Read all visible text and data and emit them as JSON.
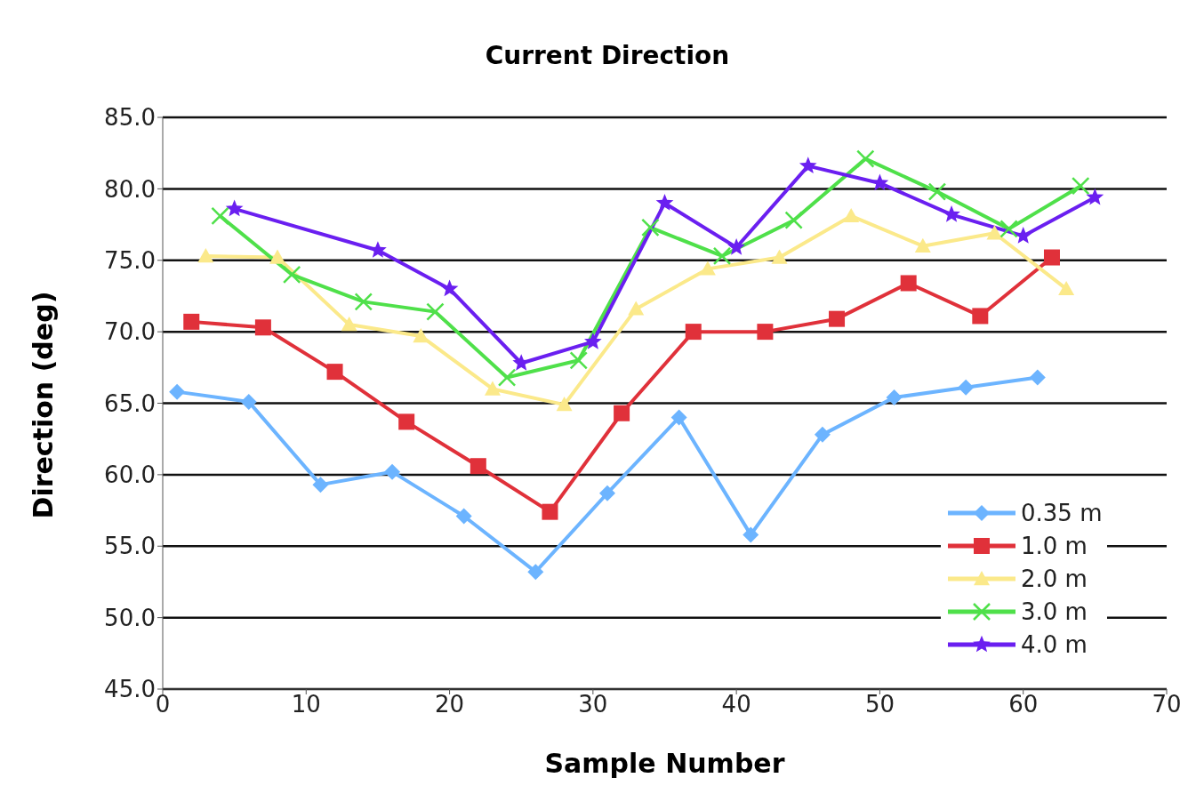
{
  "chart_data": {
    "type": "line",
    "title": "Current Direction",
    "xlabel": "Sample Number",
    "ylabel": "Direction (deg)",
    "xlim": [
      0,
      70
    ],
    "xticks": [
      0,
      10,
      20,
      30,
      40,
      50,
      60,
      70
    ],
    "ylim": [
      45,
      85
    ],
    "yticks": [
      {
        "value": 45,
        "label": "45.0"
      },
      {
        "value": 50,
        "label": "50.0"
      },
      {
        "value": 55,
        "label": "55.0"
      },
      {
        "value": 60,
        "label": "60.0"
      },
      {
        "value": 65,
        "label": "65.0"
      },
      {
        "value": 70,
        "label": "70.0"
      },
      {
        "value": 75,
        "label": "75.0"
      },
      {
        "value": 80,
        "label": "80.0"
      },
      {
        "value": 85,
        "label": "85.0"
      }
    ],
    "grid": "y",
    "legend": "bottom right",
    "series": [
      {
        "name": "0.35 m",
        "color": "#6cb4ff",
        "marker": "diamond",
        "x": [
          1,
          6,
          11,
          16,
          21,
          26,
          31,
          36,
          41,
          46,
          51,
          56,
          61
        ],
        "values": [
          65.8,
          65.1,
          59.3,
          60.2,
          57.1,
          53.2,
          58.7,
          64.0,
          55.8,
          62.8,
          65.4,
          66.1,
          66.8
        ]
      },
      {
        "name": "1.0 m",
        "color": "#e0313a",
        "marker": "square",
        "x": [
          2,
          7,
          12,
          17,
          22,
          27,
          32,
          37,
          42,
          47,
          52,
          57,
          62
        ],
        "values": [
          70.7,
          70.3,
          67.2,
          63.7,
          60.6,
          57.4,
          64.3,
          70.0,
          70.0,
          70.9,
          73.4,
          71.1,
          75.2
        ]
      },
      {
        "name": "2.0 m",
        "color": "#fbe98a",
        "marker": "triangle",
        "x": [
          3,
          8,
          13,
          18,
          23,
          28,
          33,
          38,
          43,
          48,
          53,
          58,
          63
        ],
        "values": [
          75.3,
          75.2,
          70.5,
          69.7,
          66.0,
          64.9,
          71.6,
          74.4,
          75.2,
          78.1,
          76.0,
          76.9,
          73.0
        ]
      },
      {
        "name": "3.0 m",
        "color": "#4fe04a",
        "marker": "cross",
        "x": [
          4,
          9,
          14,
          19,
          24,
          29,
          34,
          39,
          44,
          49,
          54,
          59,
          64
        ],
        "values": [
          78.1,
          74.0,
          72.1,
          71.4,
          66.8,
          68.0,
          77.3,
          75.3,
          77.8,
          82.1,
          79.8,
          77.2,
          80.2
        ]
      },
      {
        "name": "4.0 m",
        "color": "#6a1ff0",
        "marker": "star",
        "x": [
          5,
          15,
          20,
          25,
          30,
          35,
          40,
          45,
          50,
          55,
          60,
          65
        ],
        "values": [
          78.6,
          75.7,
          73.0,
          67.8,
          69.3,
          79.0,
          75.9,
          81.6,
          80.4,
          78.2,
          76.7,
          79.4
        ]
      }
    ]
  }
}
